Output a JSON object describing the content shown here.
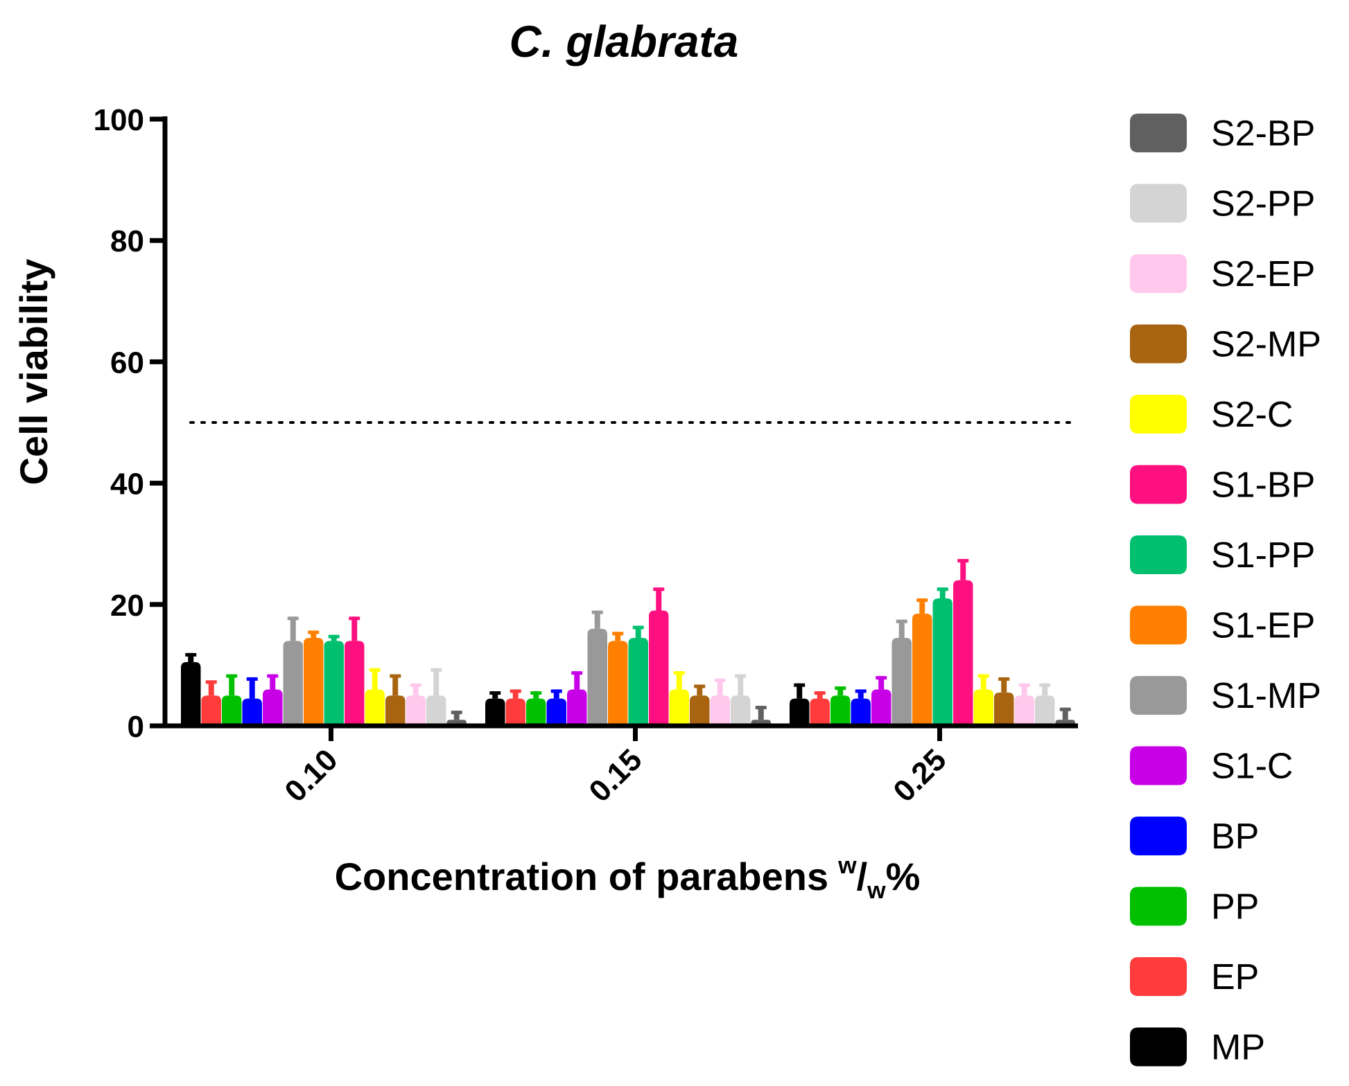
{
  "chart_data": {
    "type": "bar",
    "title": "C. glabrata",
    "ylabel": "Cell viability",
    "xlabel": "Concentration of parabens",
    "xlabel_superscript": "w",
    "xlabel_separator": "/",
    "xlabel_subscript": "w",
    "xlabel_suffix": "%",
    "ylim": [
      0,
      100
    ],
    "yticks": [
      "0",
      "20",
      "40",
      "60",
      "80",
      "100"
    ],
    "categories": [
      "0.10",
      "0.15",
      "0.25"
    ],
    "reference_line": {
      "y": 50,
      "style": "dotted"
    },
    "legend_position": "right",
    "series": [
      {
        "name": "MP",
        "color": "#000000",
        "values": [
          10.5,
          4.5,
          4.5
        ],
        "errors": [
          1.5,
          1.2,
          2.5
        ]
      },
      {
        "name": "EP",
        "color": "#ff3b3b",
        "values": [
          5,
          4.5,
          4.5
        ],
        "errors": [
          2.5,
          1.5,
          1.2
        ]
      },
      {
        "name": "PP",
        "color": "#00c000",
        "values": [
          5,
          4.5,
          5
        ],
        "errors": [
          3.5,
          1.2,
          1.5
        ]
      },
      {
        "name": "BP",
        "color": "#0000ff",
        "values": [
          4.5,
          4.5,
          4.5
        ],
        "errors": [
          3.5,
          1.5,
          1.5
        ]
      },
      {
        "name": "S1-C",
        "color": "#c800e8",
        "values": [
          6,
          6,
          6
        ],
        "errors": [
          2.5,
          3,
          2.2
        ]
      },
      {
        "name": "S1-MP",
        "color": "#999999",
        "values": [
          14,
          16,
          14.5
        ],
        "errors": [
          4,
          3,
          3
        ]
      },
      {
        "name": "S1-EP",
        "color": "#ff8000",
        "values": [
          14.5,
          14,
          18.5
        ],
        "errors": [
          1.2,
          1.5,
          2.5
        ]
      },
      {
        "name": "S1-PP",
        "color": "#00c070",
        "values": [
          14,
          14.5,
          21
        ],
        "errors": [
          1,
          2,
          1.8
        ]
      },
      {
        "name": "S1-BP",
        "color": "#ff1080",
        "values": [
          14,
          19,
          24
        ],
        "errors": [
          4,
          3.8,
          3.5
        ]
      },
      {
        "name": "S2-C",
        "color": "#ffff00",
        "values": [
          6,
          6,
          6
        ],
        "errors": [
          3.5,
          3,
          2.5
        ]
      },
      {
        "name": "S2-MP",
        "color": "#a86410",
        "values": [
          5,
          5,
          5.5
        ],
        "errors": [
          3.5,
          1.8,
          2.5
        ]
      },
      {
        "name": "S2-EP",
        "color": "#ffc8ec",
        "values": [
          5,
          5,
          5
        ],
        "errors": [
          2,
          2.8,
          2
        ]
      },
      {
        "name": "S2-PP",
        "color": "#d4d4d4",
        "values": [
          5,
          5,
          5
        ],
        "errors": [
          4.5,
          3.5,
          2
        ]
      },
      {
        "name": "S2-BP",
        "color": "#606060",
        "values": [
          1,
          1,
          1
        ],
        "errors": [
          1.5,
          2.3,
          2
        ]
      }
    ]
  }
}
